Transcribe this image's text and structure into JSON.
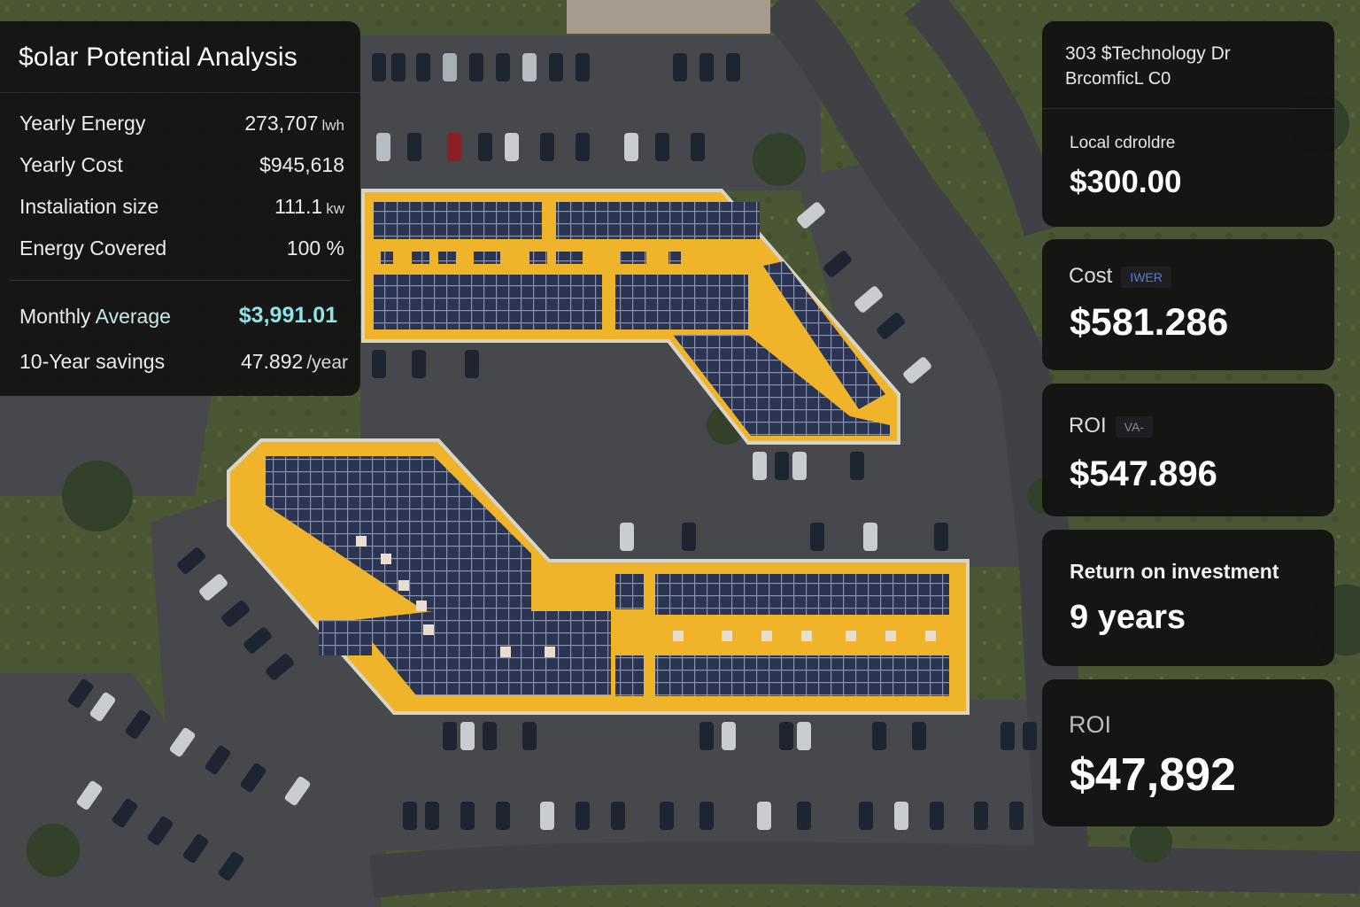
{
  "analysis": {
    "title": "$olar Potential Analysis",
    "stats": [
      {
        "label": "Yearly Energy",
        "value": "273,707",
        "unit": "lwh"
      },
      {
        "label": "Yearly Cost",
        "value": "$945,618",
        "unit": ""
      },
      {
        "label": "Instaliation size",
        "value": "111.1",
        "unit": "kw"
      },
      {
        "label": "Energy Covered",
        "value": "100 %",
        "unit": ""
      }
    ],
    "monthly_label_a": "Monthly ",
    "monthly_label_b": "Average",
    "monthly_value": "$3,991.01",
    "savings_label": "10-Year savings",
    "savings_value": "47.892",
    "savings_unit": "/year"
  },
  "address": {
    "line1": "303 $Technology Dr",
    "line2": "BrcomficL C0",
    "rate_label": "Local cdroldre",
    "rate_value": "$300.00"
  },
  "cost_card": {
    "label": "Cost",
    "badge": "IWER",
    "value": "$581.286"
  },
  "roi_card": {
    "label": "ROI",
    "badge": "VA-",
    "value": "$547.896"
  },
  "return_card": {
    "label": "Return on investment",
    "value": "9 years"
  },
  "roi_total_card": {
    "label": "ROI",
    "value": "$47,892"
  },
  "colors": {
    "panel": "#121212",
    "accent": "#8fe3ea",
    "roof": "#efb42a",
    "solar_panel": "#2c3552",
    "asphalt": "#4a4c4f",
    "grass": "#4d5a34"
  }
}
